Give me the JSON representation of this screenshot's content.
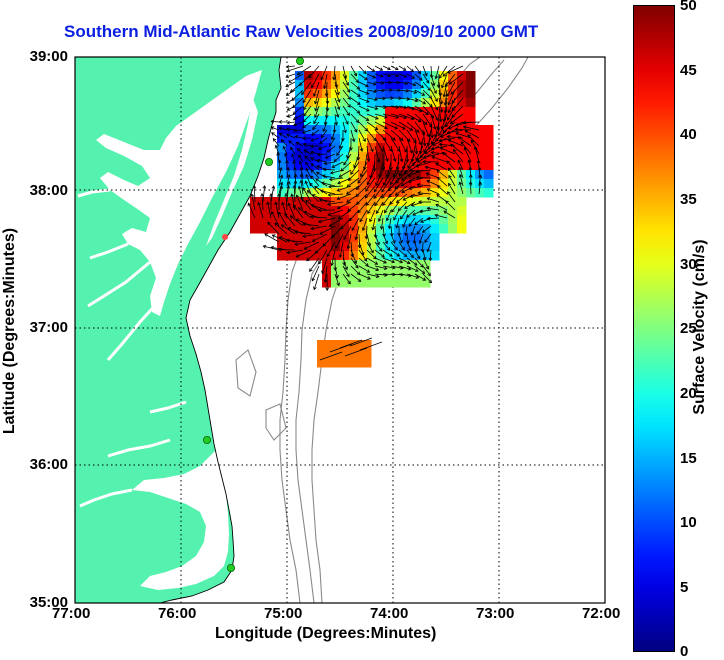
{
  "title": "Southern Mid-Atlantic Raw Velocities 2008/09/10 2000 GMT",
  "axes": {
    "xlabel": "Longitude (Degrees:Minutes)",
    "ylabel": "Latitude (Degrees:Minutes)",
    "x_ticks": [
      "77:00",
      "76:00",
      "75:00",
      "74:00",
      "73:00",
      "72:00"
    ],
    "y_ticks": [
      "39:00",
      "38:00",
      "37:00",
      "36:00",
      "35:00"
    ],
    "xlim": [
      -77,
      -72
    ],
    "ylim": [
      35,
      39
    ],
    "grid": "dotted"
  },
  "colorbar": {
    "label": "Surface Velocity (cm/s)",
    "ticks": [
      "50",
      "45",
      "40",
      "35",
      "30",
      "25",
      "20",
      "15",
      "10",
      "5",
      "0"
    ],
    "range": [
      0,
      50
    ],
    "colormap": "jet"
  },
  "colors": {
    "land": "#54f2ae",
    "bathymetry": "#888888",
    "title": "#0b1fe0",
    "station_marker": "#22cc22"
  }
}
